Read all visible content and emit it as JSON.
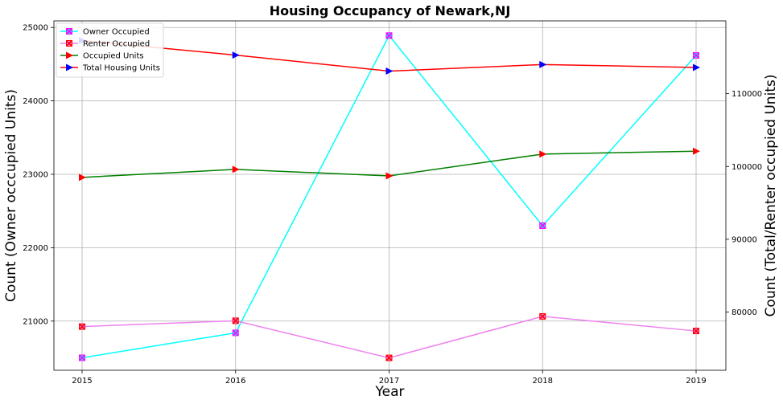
{
  "chart_data": {
    "type": "line",
    "title": "Housing Occupancy of Newark,NJ",
    "xlabel": "Year",
    "ylabel_left": "Count (Owner occcupied Units)",
    "ylabel_right": "Count (Total/Renter occupied Units)",
    "x": [
      "2015",
      "2016",
      "2017",
      "2018",
      "2019"
    ],
    "left_axis": {
      "ylim": [
        20330,
        25090
      ],
      "ticks": [
        21000,
        22000,
        23000,
        24000,
        25000
      ]
    },
    "right_axis": {
      "ylim": [
        72000,
        120000
      ],
      "ticks": [
        80000,
        90000,
        100000,
        110000
      ]
    },
    "grid": true,
    "legend_position": "top-left",
    "series": [
      {
        "name": "Owner Occupied",
        "axis": "left",
        "color": "#00ffff",
        "marker": "x-square",
        "marker_color": "#ff00ff",
        "values": [
          20500,
          20840,
          24890,
          22300,
          24620
        ]
      },
      {
        "name": "Renter Occupied",
        "axis": "right",
        "color": "#ee82ee",
        "marker": "x-square",
        "marker_color": "#ff0000",
        "values": [
          78000,
          78800,
          73700,
          79400,
          77400
        ]
      },
      {
        "name": "Occupied Units",
        "axis": "right",
        "color": "#008000",
        "marker": "triangle-right",
        "marker_color": "#ff0000",
        "values": [
          98500,
          99600,
          98700,
          101700,
          102100
        ]
      },
      {
        "name": "Total Housing Units",
        "axis": "right",
        "color": "#ff0000",
        "marker": "triangle-right",
        "marker_color": "#0000ff",
        "values": [
          117300,
          115300,
          113100,
          114000,
          113600
        ]
      }
    ]
  }
}
